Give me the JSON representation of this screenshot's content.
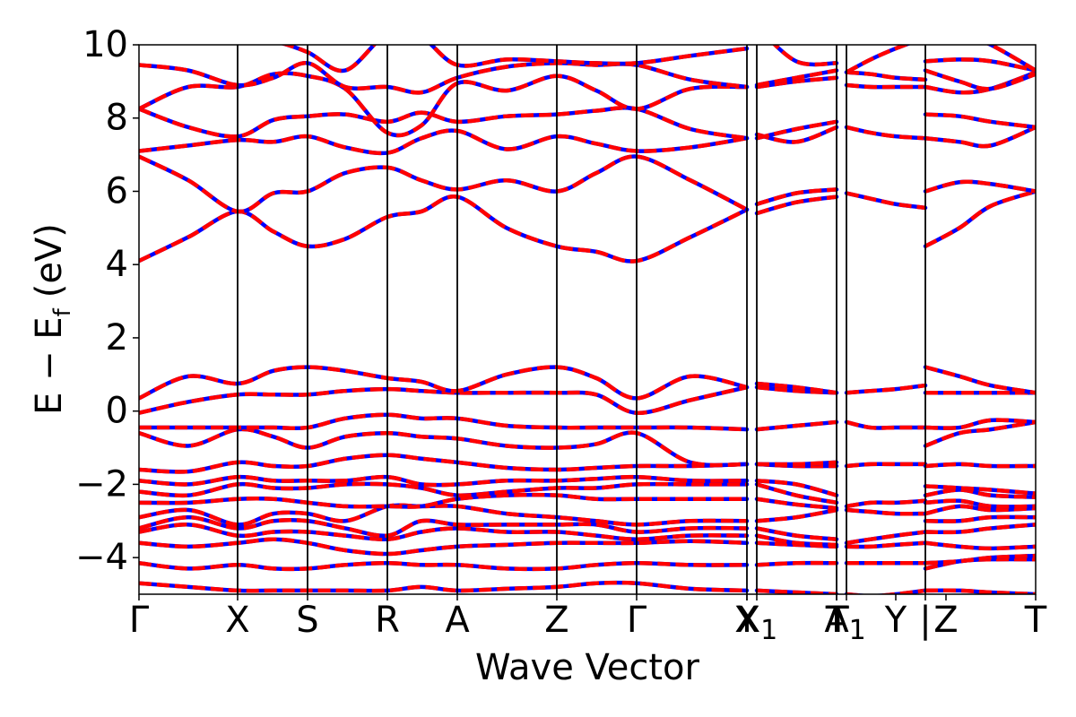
{
  "chart_data": {
    "type": "line",
    "title": "",
    "xlabel": "Wave Vector",
    "ylabel": "E − E",
    "ylabel_sub": "f",
    "ylabel_unit": "(eV)",
    "ylim": [
      -5,
      10
    ],
    "yticks": [
      -4,
      -2,
      0,
      2,
      4,
      6,
      8,
      10
    ],
    "ytick_labels": [
      "−4",
      "−2",
      "0",
      "2",
      "4",
      "6",
      "8",
      "10"
    ],
    "xlim": [
      0,
      1
    ],
    "kpoints": [
      {
        "pos": 0.0,
        "label": "Γ"
      },
      {
        "pos": 0.11,
        "label": "X"
      },
      {
        "pos": 0.188,
        "label": "S"
      },
      {
        "pos": 0.277,
        "label": "R"
      },
      {
        "pos": 0.355,
        "label": "A"
      },
      {
        "pos": 0.466,
        "label": "Z"
      },
      {
        "pos": 0.555,
        "label": "Γ"
      },
      {
        "pos": 0.678,
        "label": "Y"
      },
      {
        "pos": 0.678,
        "label": "X"
      },
      {
        "pos": 0.689,
        "label": "X",
        "sub": "1"
      },
      {
        "pos": 0.778,
        "label": "A"
      },
      {
        "pos": 0.778,
        "label": "T"
      },
      {
        "pos": 0.789,
        "label": "T",
        "sub": "1"
      },
      {
        "pos": 0.844,
        "label": "Y"
      },
      {
        "pos": 0.877,
        "label": "|"
      },
      {
        "pos": 0.9,
        "label": "Z"
      },
      {
        "pos": 1.0,
        "label": "T"
      }
    ],
    "vlines": [
      0.11,
      0.188,
      0.277,
      0.355,
      0.466,
      0.555,
      0.678,
      0.689,
      0.778,
      0.789,
      0.877
    ],
    "series_style": [
      {
        "name": "",
        "color": "#0000ff",
        "style": "solid"
      },
      {
        "name": "",
        "color": "#ff0000",
        "style": "dashed"
      }
    ],
    "segments": [
      {
        "x": [
          0.0,
          0.055,
          0.11,
          0.15,
          0.188,
          0.23,
          0.277,
          0.315,
          0.355,
          0.41,
          0.466,
          0.51,
          0.555,
          0.615,
          0.678
        ],
        "bands": [
          [
            -4.7,
            -4.8,
            -4.9,
            -4.9,
            -4.9,
            -4.9,
            -4.9,
            -4.8,
            -4.9,
            -4.85,
            -4.8,
            -4.7,
            -4.7,
            -4.85,
            -4.9
          ],
          [
            -4.15,
            -4.3,
            -4.2,
            -4.3,
            -4.3,
            -4.2,
            -4.15,
            -4.2,
            -4.2,
            -4.3,
            -4.3,
            -4.2,
            -4.15,
            -4.2,
            -4.2
          ],
          [
            -3.6,
            -3.7,
            -3.6,
            -3.5,
            -3.6,
            -3.8,
            -3.9,
            -3.8,
            -3.7,
            -3.65,
            -3.6,
            -3.6,
            -3.6,
            -3.55,
            -3.6
          ],
          [
            -3.3,
            -3.1,
            -3.4,
            -3.3,
            -3.3,
            -3.4,
            -3.5,
            -3.3,
            -3.2,
            -3.3,
            -3.3,
            -3.4,
            -3.5,
            -3.4,
            -3.4
          ],
          [
            -3.2,
            -2.9,
            -3.2,
            -3.0,
            -3.0,
            -3.2,
            -3.4,
            -3.0,
            -3.1,
            -3.1,
            -3.1,
            -3.1,
            -3.3,
            -3.2,
            -3.2
          ],
          [
            -2.9,
            -2.7,
            -3.1,
            -2.8,
            -2.8,
            -3.0,
            -2.6,
            -2.6,
            -2.6,
            -2.8,
            -2.9,
            -3.0,
            -3.1,
            -3.0,
            -3.0
          ],
          [
            -2.5,
            -2.5,
            -2.4,
            -2.4,
            -2.5,
            -2.6,
            -2.6,
            -2.6,
            -2.4,
            -2.3,
            -2.3,
            -2.4,
            -2.4,
            -2.4,
            -2.4
          ],
          [
            -2.2,
            -2.3,
            -2.0,
            -2.1,
            -2.1,
            -2.0,
            -2.0,
            -2.1,
            -2.3,
            -2.2,
            -2.1,
            -2.1,
            -2.0,
            -2.0,
            -2.0
          ],
          [
            -1.9,
            -2.0,
            -1.8,
            -1.9,
            -1.9,
            -1.9,
            -1.8,
            -2.0,
            -2.0,
            -1.9,
            -1.9,
            -1.85,
            -1.8,
            -1.9,
            -1.9
          ],
          [
            -1.6,
            -1.65,
            -1.4,
            -1.5,
            -1.5,
            -1.3,
            -1.2,
            -1.3,
            -1.4,
            -1.55,
            -1.6,
            -1.55,
            -1.5,
            -1.5,
            -1.45
          ],
          [
            -0.6,
            -0.95,
            -0.5,
            -0.7,
            -1.0,
            -0.7,
            -0.6,
            -0.7,
            -0.75,
            -0.95,
            -1.0,
            -0.9,
            -0.6,
            -1.4,
            -1.45
          ],
          [
            -0.45,
            -0.45,
            -0.45,
            -0.45,
            -0.45,
            -0.2,
            -0.1,
            -0.2,
            -0.2,
            -0.4,
            -0.45,
            -0.45,
            -0.45,
            -0.45,
            -0.5
          ],
          [
            -0.05,
            0.25,
            0.45,
            0.45,
            0.45,
            0.55,
            0.6,
            0.55,
            0.5,
            0.5,
            0.5,
            0.45,
            -0.05,
            0.3,
            0.65
          ],
          [
            0.35,
            0.95,
            0.75,
            1.1,
            1.2,
            1.1,
            0.9,
            0.8,
            0.55,
            1.0,
            1.2,
            0.9,
            0.35,
            0.95,
            0.65
          ],
          [
            4.1,
            4.75,
            5.45,
            4.9,
            4.5,
            4.7,
            5.3,
            5.45,
            5.85,
            5.0,
            4.5,
            4.35,
            4.1,
            4.75,
            5.5
          ],
          [
            6.95,
            6.3,
            5.45,
            5.95,
            6.0,
            6.5,
            6.65,
            6.3,
            6.05,
            6.3,
            6.0,
            6.5,
            6.95,
            6.3,
            5.5
          ],
          [
            7.1,
            7.25,
            7.4,
            7.35,
            7.5,
            7.2,
            7.05,
            7.45,
            7.65,
            7.15,
            7.5,
            7.3,
            7.1,
            7.2,
            7.45
          ],
          [
            8.25,
            7.75,
            7.5,
            7.95,
            8.05,
            8.1,
            7.9,
            8.15,
            7.9,
            8.05,
            8.1,
            8.2,
            8.25,
            7.7,
            7.45
          ],
          [
            8.25,
            8.85,
            8.85,
            9.2,
            9.15,
            8.8,
            7.6,
            7.8,
            8.95,
            8.75,
            9.15,
            8.75,
            8.25,
            8.8,
            8.85
          ],
          [
            9.45,
            9.3,
            8.9,
            9.1,
            9.5,
            8.85,
            8.85,
            8.7,
            9.1,
            9.4,
            9.5,
            9.45,
            9.45,
            9.05,
            8.85
          ],
          [
            10.4,
            10.3,
            10.2,
            10.1,
            9.8,
            9.3,
            10.3,
            10.2,
            9.45,
            9.6,
            9.55,
            9.5,
            9.5,
            9.7,
            9.9
          ]
        ]
      },
      {
        "x": [
          0.689,
          0.733,
          0.778
        ],
        "bands": [
          [
            -4.9,
            -4.95,
            -5.0
          ],
          [
            -4.2,
            -4.15,
            -4.15
          ],
          [
            -3.6,
            -3.65,
            -3.7
          ],
          [
            -3.4,
            -3.6,
            -3.65
          ],
          [
            -3.2,
            -3.4,
            -3.5
          ],
          [
            -3.0,
            -2.9,
            -2.7
          ],
          [
            -2.4,
            -2.55,
            -2.65
          ],
          [
            -2.0,
            -2.3,
            -2.5
          ],
          [
            -1.9,
            -2.0,
            -2.3
          ],
          [
            -1.45,
            -1.5,
            -1.5
          ],
          [
            -1.45,
            -1.45,
            -1.4
          ],
          [
            -0.5,
            -0.4,
            -0.3
          ],
          [
            0.65,
            0.55,
            0.5
          ],
          [
            0.75,
            0.65,
            0.5
          ],
          [
            5.4,
            5.7,
            5.85
          ],
          [
            5.65,
            5.95,
            6.05
          ],
          [
            7.55,
            7.35,
            7.75
          ],
          [
            7.45,
            7.7,
            7.9
          ],
          [
            8.85,
            9.0,
            9.1
          ],
          [
            8.9,
            9.1,
            9.3
          ],
          [
            10.5,
            9.55,
            9.5
          ]
        ]
      },
      {
        "x": [
          0.789,
          0.816,
          0.844,
          0.877
        ],
        "bands": [
          [
            -5.0,
            -5.05,
            -5.0,
            -4.9
          ],
          [
            -4.15,
            -4.15,
            -4.15,
            -4.15
          ],
          [
            -3.7,
            -3.7,
            -3.65,
            -3.6
          ],
          [
            -3.6,
            -3.5,
            -3.4,
            -3.3
          ],
          [
            -2.7,
            -2.75,
            -2.8,
            -2.8
          ],
          [
            -2.6,
            -2.5,
            -2.5,
            -2.45
          ],
          [
            -1.5,
            -1.45,
            -1.45,
            -1.45
          ],
          [
            -0.3,
            -0.45,
            -0.45,
            -0.45
          ],
          [
            0.5,
            0.55,
            0.6,
            0.7
          ],
          [
            5.95,
            5.8,
            5.65,
            5.55
          ],
          [
            7.75,
            7.6,
            7.5,
            7.45
          ],
          [
            8.9,
            8.85,
            8.85,
            8.85
          ],
          [
            9.25,
            9.2,
            9.1,
            9.05
          ],
          [
            9.25,
            9.6,
            9.9,
            10.2
          ]
        ]
      },
      {
        "x": [
          0.877,
          0.915,
          0.95,
          1.0
        ],
        "bands": [
          [
            -4.9,
            -4.9,
            -4.95,
            -5.0
          ],
          [
            -4.3,
            -4.1,
            -4.05,
            -4.05
          ],
          [
            -4.15,
            -4.1,
            -4.0,
            -3.95
          ],
          [
            -3.6,
            -3.7,
            -3.75,
            -3.7
          ],
          [
            -3.3,
            -3.3,
            -3.2,
            -3.1
          ],
          [
            -3.0,
            -3.0,
            -2.9,
            -2.9
          ],
          [
            -2.8,
            -2.6,
            -2.7,
            -2.65
          ],
          [
            -2.5,
            -2.45,
            -2.6,
            -2.6
          ],
          [
            -2.3,
            -2.15,
            -2.3,
            -2.35
          ],
          [
            -2.05,
            -2.1,
            -2.15,
            -2.25
          ],
          [
            -1.5,
            -1.45,
            -1.5,
            -1.5
          ],
          [
            -0.95,
            -0.6,
            -0.5,
            -0.3
          ],
          [
            -0.45,
            -0.45,
            -0.25,
            -0.3
          ],
          [
            0.5,
            0.5,
            0.5,
            0.5
          ],
          [
            1.2,
            0.95,
            0.7,
            0.5
          ],
          [
            4.5,
            5.0,
            5.6,
            6.0
          ],
          [
            6.0,
            6.25,
            6.2,
            6.0
          ],
          [
            7.45,
            7.35,
            7.25,
            7.75
          ],
          [
            8.1,
            8.05,
            7.9,
            7.75
          ],
          [
            8.85,
            8.7,
            8.8,
            9.25
          ],
          [
            9.3,
            9.0,
            8.8,
            9.2
          ],
          [
            9.55,
            9.6,
            9.55,
            9.3
          ],
          [
            10.5,
            10.3,
            10.0,
            9.3
          ]
        ]
      }
    ]
  }
}
